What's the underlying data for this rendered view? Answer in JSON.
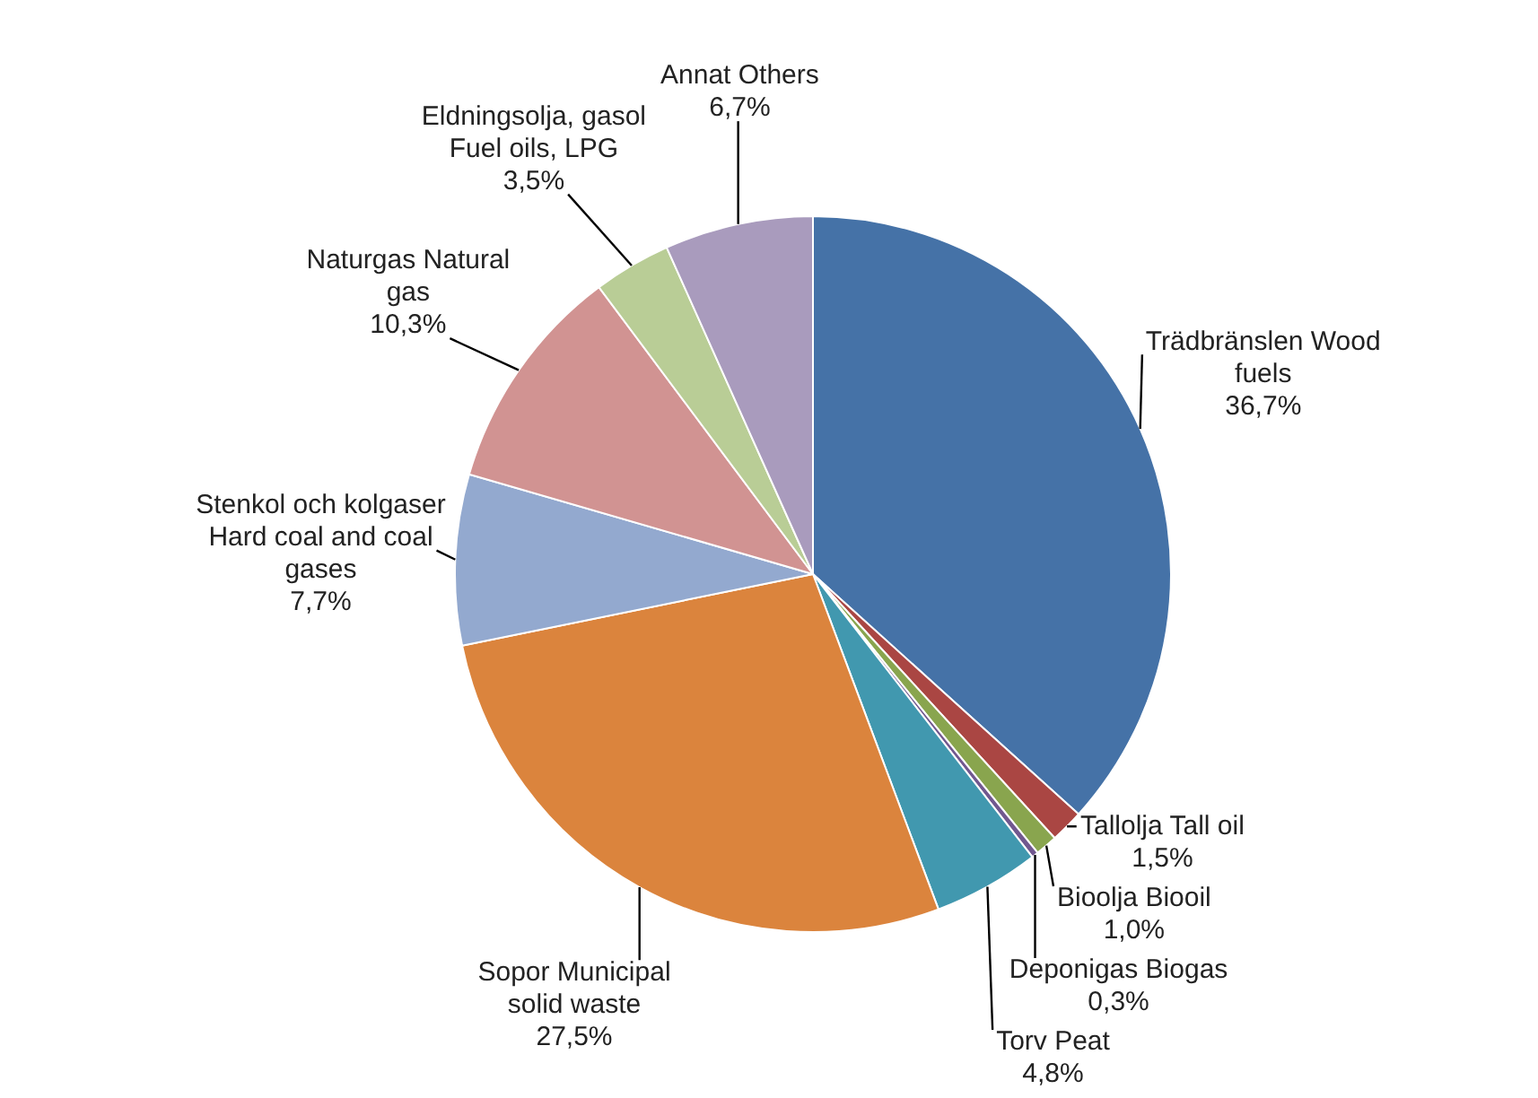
{
  "chart_data": {
    "type": "pie",
    "categories": [
      "Trädbränslen Wood fuels",
      "Tallolja Tall oil",
      "Bioolja Biooil",
      "Deponigas Biogas",
      "Torv Peat",
      "Sopor Municipal solid waste",
      "Stenkol och kolgaser Hard coal and coal gases",
      "Naturgas Natural gas",
      "Eldningsolja, gasol Fuel oils, LPG",
      "Annat Others"
    ],
    "values": [
      36.7,
      1.5,
      1.0,
      0.3,
      4.8,
      27.5,
      7.7,
      10.3,
      3.5,
      6.7
    ],
    "colors": [
      "#4572a7",
      "#aa4643",
      "#89a54e",
      "#71588f",
      "#4198af",
      "#db843d",
      "#93a9cf",
      "#d19392",
      "#b9cd96",
      "#a99bbd"
    ],
    "value_labels": [
      "36,7%",
      "1,5%",
      "1,0%",
      "0,3%",
      "4,8%",
      "27,5%",
      "7,7%",
      "10,3%",
      "3,5%",
      "6,7%"
    ],
    "legend": false
  }
}
